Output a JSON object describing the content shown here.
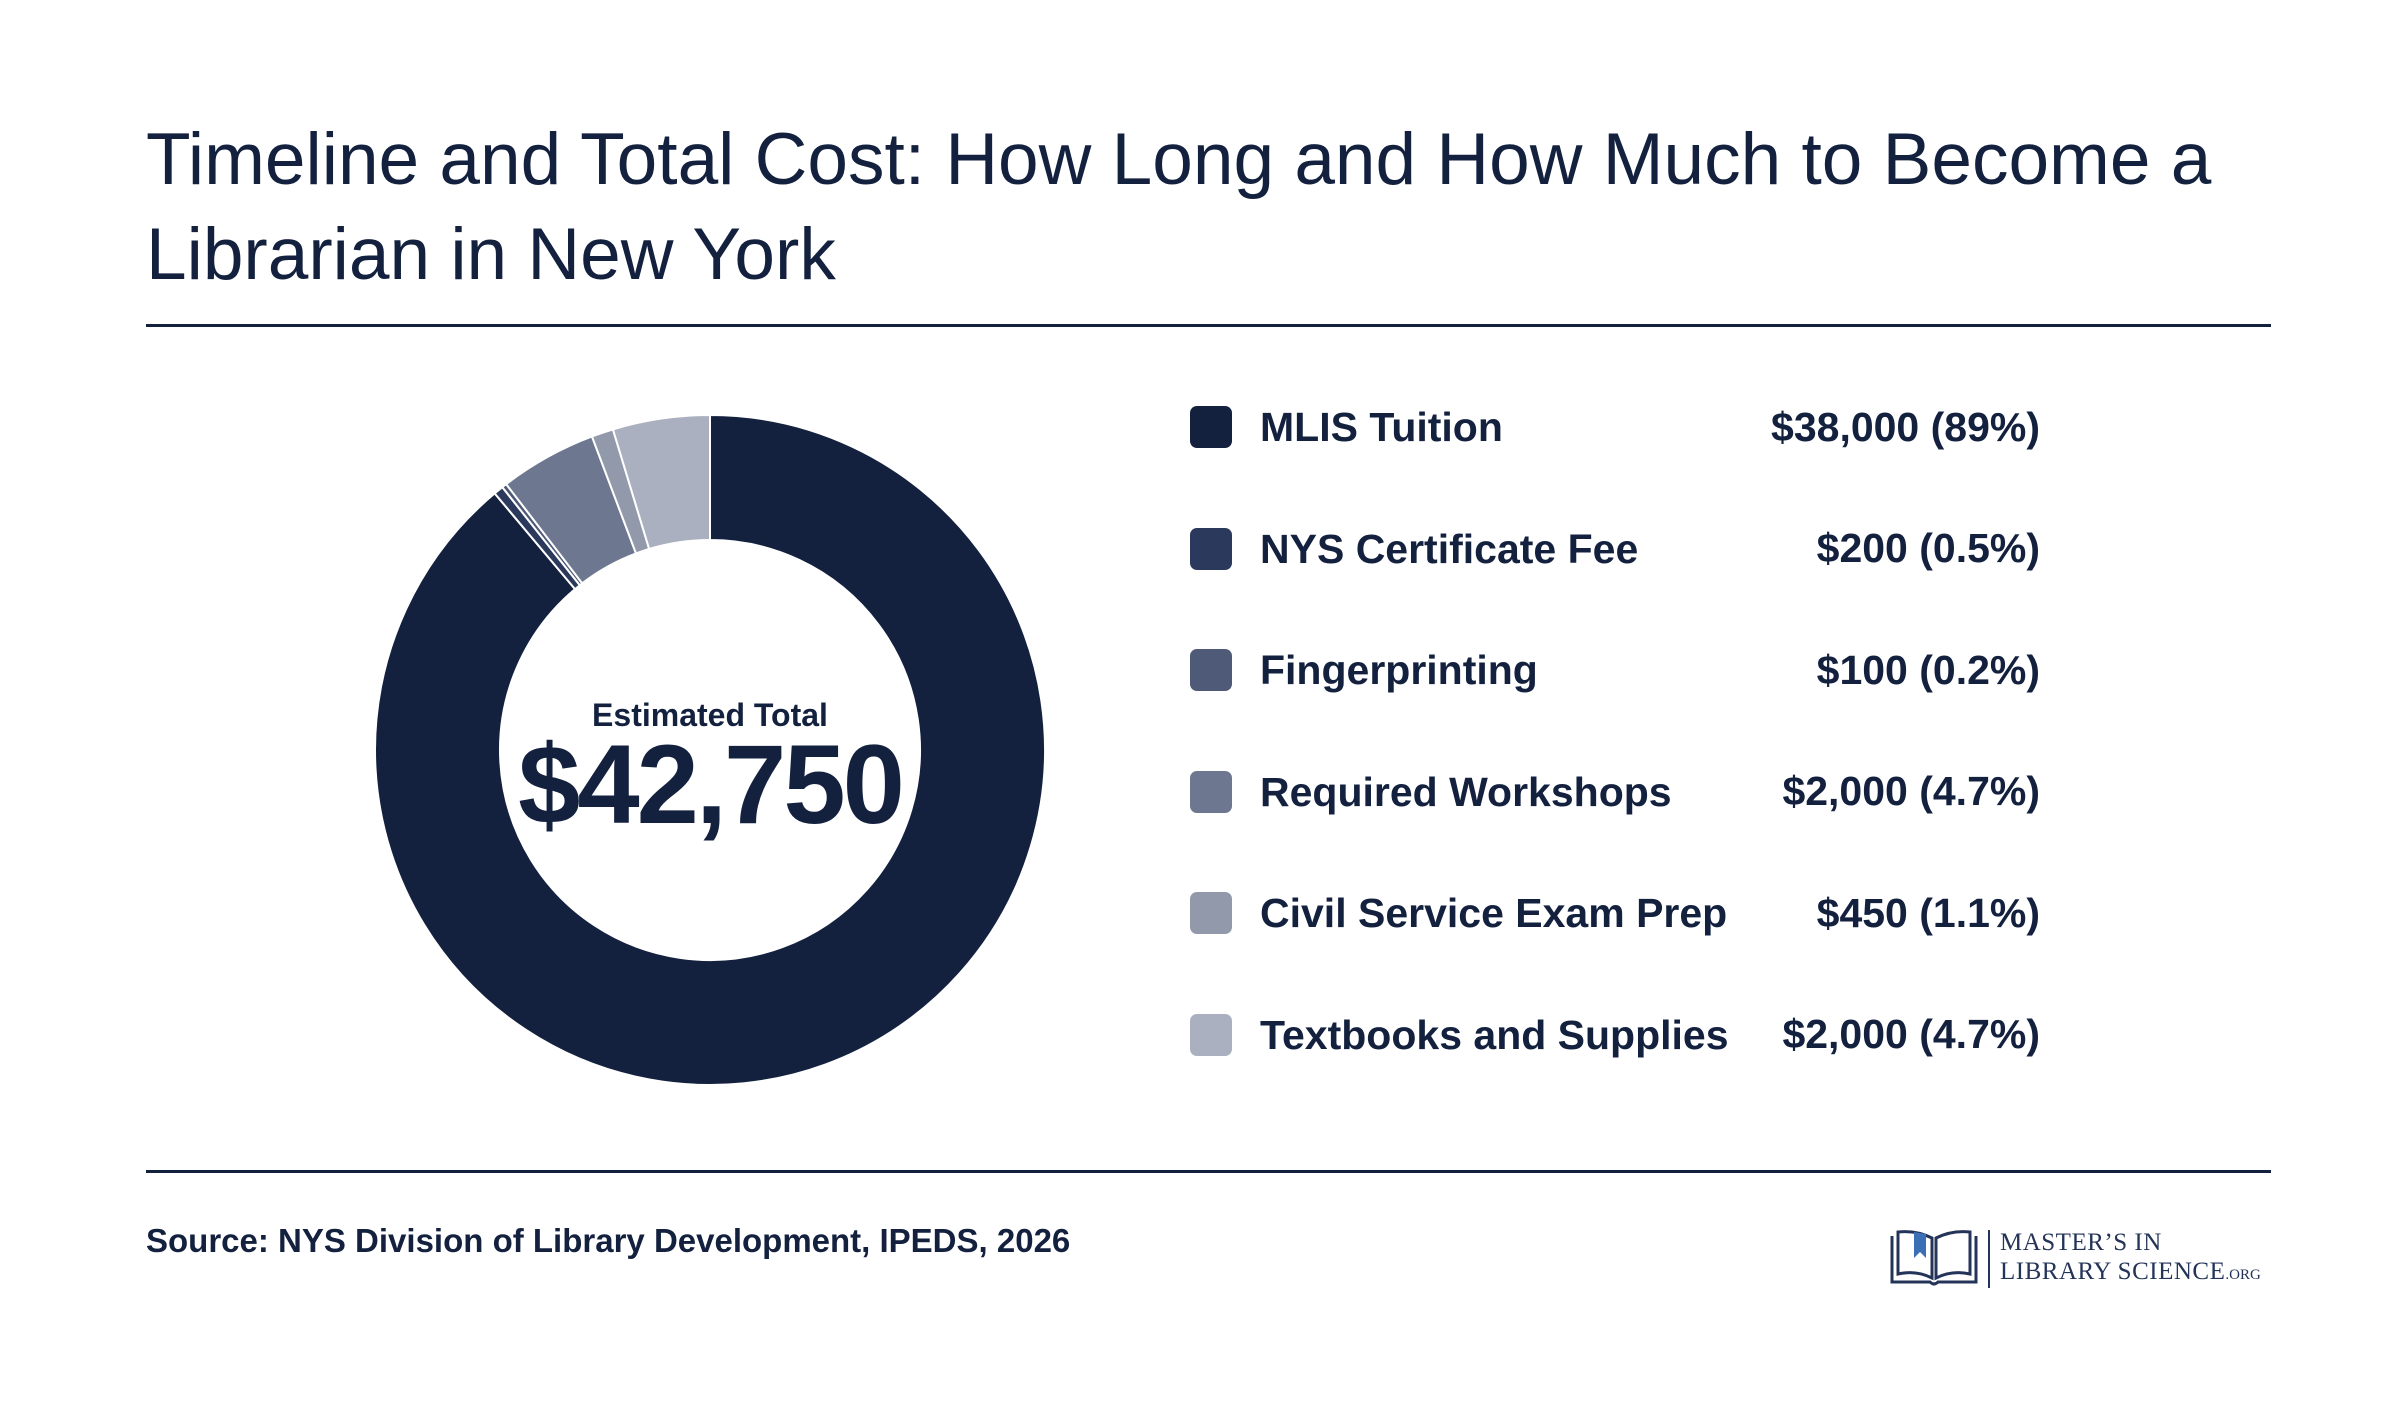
{
  "header": {
    "title": "Timeline and Total Cost: How Long and How Much to Become a Librarian in New York"
  },
  "center": {
    "label": "Estimated Total",
    "total": "$42,750"
  },
  "chart_data": {
    "type": "pie",
    "variant": "donut",
    "title": "Timeline and Total Cost: How Long and How Much to Become a Librarian in New York",
    "total_label": "Estimated Total",
    "total": 42750,
    "legend_placement": "right",
    "categories": [
      "MLIS Tuition",
      "NYS Certificate Fee",
      "Fingerprinting",
      "Required Workshops",
      "Civil Service Exam Prep",
      "Textbooks and Supplies"
    ],
    "values": [
      38000,
      200,
      100,
      2000,
      450,
      2000
    ],
    "value_labels": [
      "$38,000 (89%)",
      "$200 (0.5%)",
      "$100 (0.2%)",
      "$2,000 (4.7%)",
      "$450 (1.1%)",
      "$2,000 (4.7%)"
    ],
    "colors": [
      "#13213f",
      "#2b3a5c",
      "#4e5a77",
      "#6d7890",
      "#9299ab",
      "#aab0bf"
    ]
  },
  "source": "Source: NYS Division of Library Development, IPEDS, 2026",
  "logo": {
    "line1": "MASTER’S IN",
    "line2": "LIBRARY SCIENCE",
    "suffix": ".ORG"
  }
}
